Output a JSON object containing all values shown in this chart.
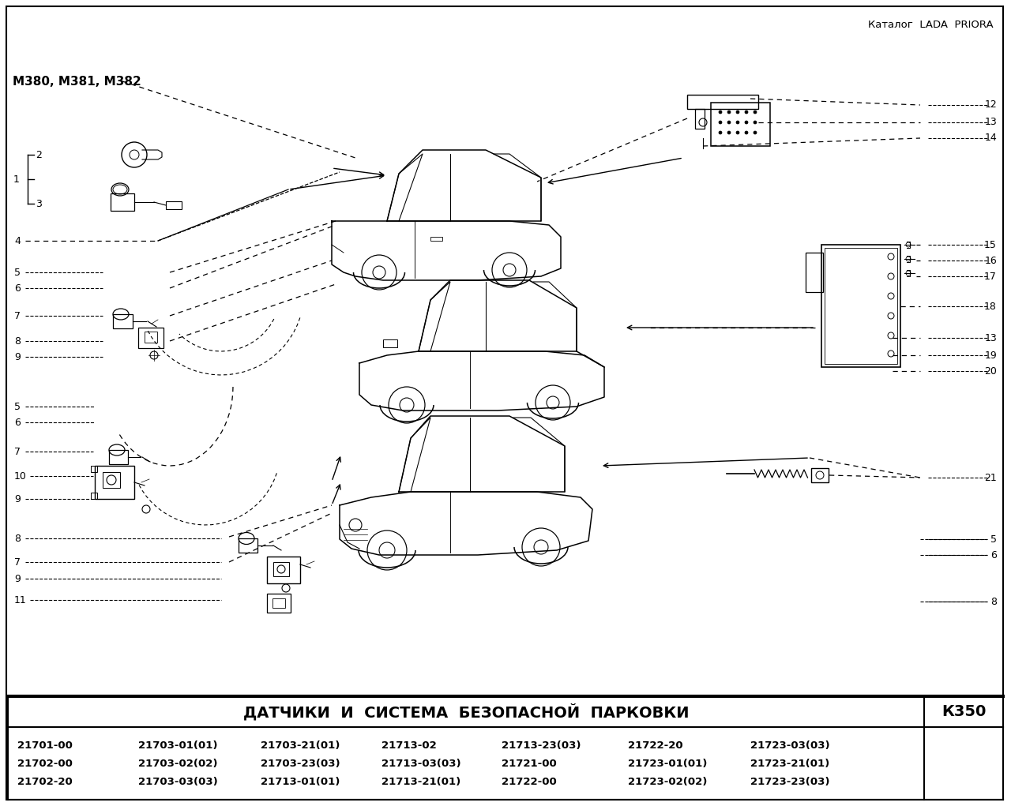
{
  "header_text": "Каталог  LADA  PRIORA",
  "title_text": "ДАТЧИКИ  И  СИСТЕМА  БЕЗОПАСНОЙ  ПАРКОВКИ",
  "code_text": "К350",
  "model_text": "М380, М381, М382",
  "part_numbers": [
    [
      "21701-00",
      "21703-01(01)",
      "21703-21(01)",
      "21713-02",
      "21713-23(03)",
      "21722-20",
      "21723-03(03)"
    ],
    [
      "21702-00",
      "21703-02(02)",
      "21703-23(03)",
      "21713-03(03)",
      "21721-00",
      "21723-01(01)",
      "21723-21(01)"
    ],
    [
      "21702-20",
      "21703-03(03)",
      "21713-01(01)",
      "21713-21(01)",
      "21722-00",
      "21723-02(02)",
      "21723-23(03)"
    ]
  ],
  "bg_color": "#ffffff",
  "border_color": "#000000",
  "text_color": "#000000",
  "figsize": [
    12.8,
    10.21
  ],
  "dpi": 100
}
